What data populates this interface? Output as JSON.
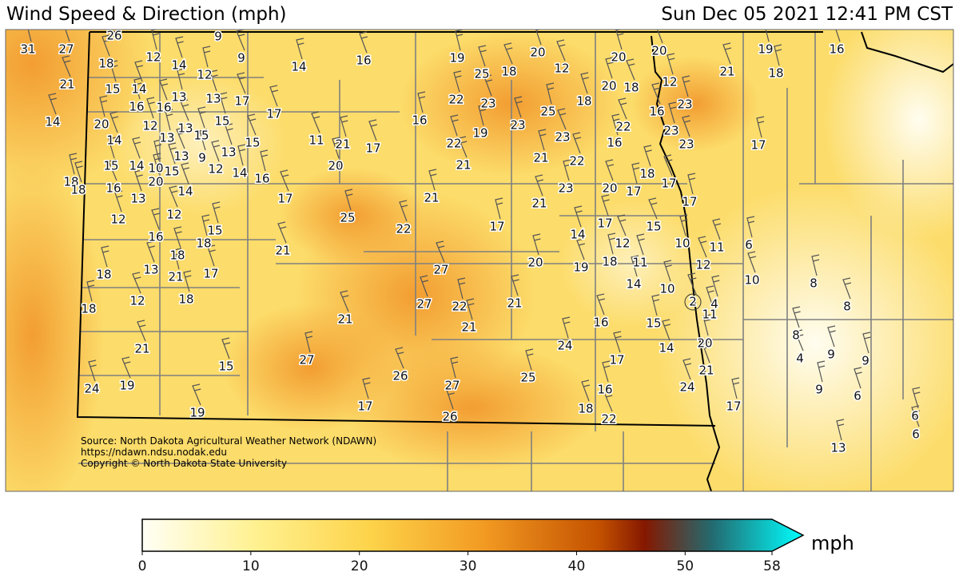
{
  "header": {
    "title": "Wind Speed & Direction (mph)",
    "timestamp": "Sun Dec 05 2021 12:41 PM CST"
  },
  "stations": [
    31,
    27,
    26,
    9,
    18,
    12,
    14,
    9,
    14,
    16,
    19,
    20,
    12,
    20,
    20,
    19,
    16,
    21,
    15,
    14,
    12,
    25,
    18,
    12,
    21,
    18,
    20,
    18,
    16,
    16,
    13,
    13,
    17,
    22,
    23,
    25,
    18,
    16,
    23,
    14,
    20,
    12,
    13,
    15,
    17,
    16,
    23,
    22,
    23,
    14,
    13,
    15,
    11,
    21,
    17,
    19,
    22,
    23,
    16,
    23,
    17,
    13,
    15,
    15,
    14,
    10,
    15,
    13,
    9,
    12,
    14,
    20,
    21,
    21,
    22,
    18,
    18,
    16,
    20,
    14,
    16,
    18,
    17,
    23,
    20,
    17,
    13,
    17,
    21,
    21,
    17,
    12,
    12,
    25,
    22,
    17,
    17,
    15,
    15,
    16,
    18,
    14,
    12,
    10,
    11,
    6,
    18,
    21,
    20,
    19,
    18,
    11,
    12,
    18,
    13,
    21,
    17,
    27,
    14,
    10,
    8,
    10,
    12,
    18,
    27,
    22,
    21,
    2,
    4,
    8,
    18,
    11,
    21,
    21,
    16,
    15,
    8,
    21,
    24,
    14,
    20,
    9,
    4,
    9,
    15,
    27,
    17,
    26,
    25,
    21,
    27,
    24,
    19,
    16,
    24,
    9,
    6,
    19,
    17,
    18,
    17,
    26,
    22,
    6,
    6,
    13
  ],
  "source": [
    "Source: North Dakota Agricultural Weather Network (NDAWN)",
    "https://ndawn.ndsu.nodak.edu",
    "Copyright © North Dakota State University"
  ],
  "colorbar": {
    "ticks": [
      0,
      10,
      20,
      30,
      40,
      50,
      58
    ],
    "unit": "mph"
  }
}
